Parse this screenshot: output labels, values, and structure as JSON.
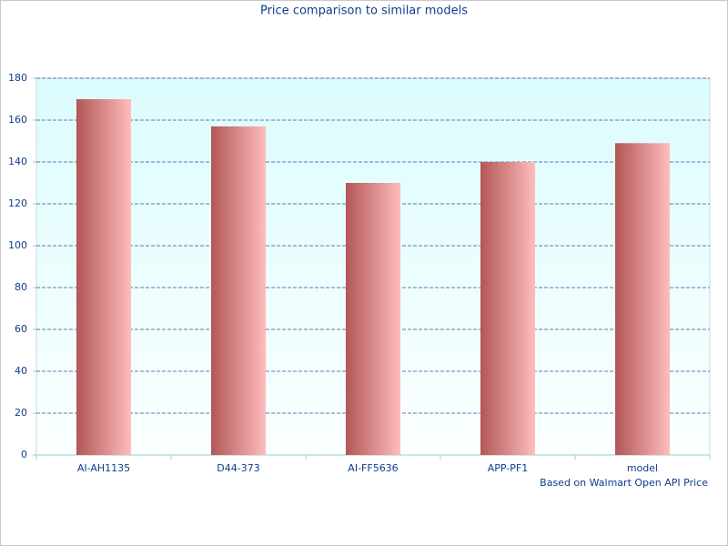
{
  "chart_data": {
    "type": "bar",
    "title": "Price comparison to similar models",
    "categories": [
      "AI-AH1135",
      "D44-373",
      "AI-FF5636",
      "APP-PF1",
      "model"
    ],
    "values": [
      170,
      157,
      130,
      140,
      149
    ],
    "color": [
      "#b35656",
      "#ffbdbd"
    ],
    "ylim": [
      0,
      180
    ],
    "yticks": [
      0,
      20,
      40,
      60,
      80,
      100,
      120,
      140,
      160,
      180
    ],
    "grid": true,
    "note": "Based on Walmart Open API Price"
  }
}
